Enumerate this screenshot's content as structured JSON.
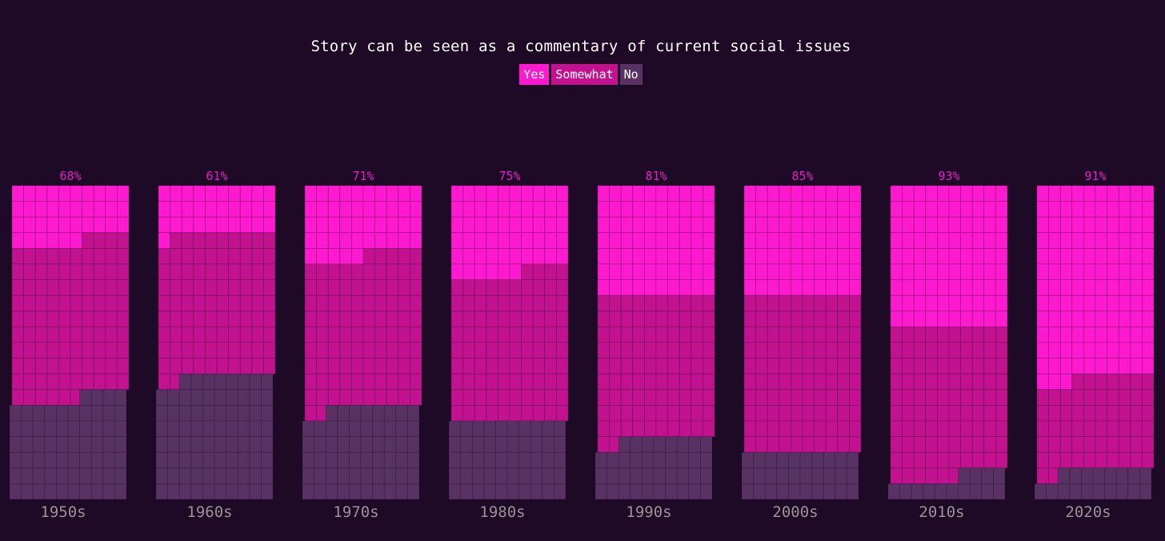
{
  "colors": {
    "background": "#1e0a26",
    "yes": "#ff1ad0",
    "somewhat": "#c2128f",
    "no": "#583262",
    "grid_line": "#1e0a26",
    "percent_label": "#e61dc8",
    "decade_label": "#9a929a"
  },
  "chart_data": {
    "type": "waffle",
    "title": "Story can be seen as a commentary of current social issues",
    "legend": [
      "Yes",
      "Somewhat",
      "No"
    ],
    "legend_placement": "top-center",
    "categories": [
      "1950s",
      "1960s",
      "1970s",
      "1980s",
      "1990s",
      "2000s",
      "2010s",
      "2020s"
    ],
    "percent_labels": [
      "68%",
      "61%",
      "71%",
      "75%",
      "81%",
      "85%",
      "93%",
      "91%"
    ],
    "grid": {
      "columns": 10,
      "rows": 20,
      "cells": 200
    },
    "series": [
      {
        "name": "Yes",
        "values": [
          36,
          31,
          45,
          56,
          70,
          70,
          90,
          123
        ]
      },
      {
        "name": "Somewhat",
        "values": [
          100,
          91,
          97,
          94,
          92,
          100,
          96,
          59
        ]
      },
      {
        "name": "No",
        "values": [
          64,
          78,
          58,
          50,
          38,
          30,
          14,
          18
        ]
      }
    ]
  }
}
